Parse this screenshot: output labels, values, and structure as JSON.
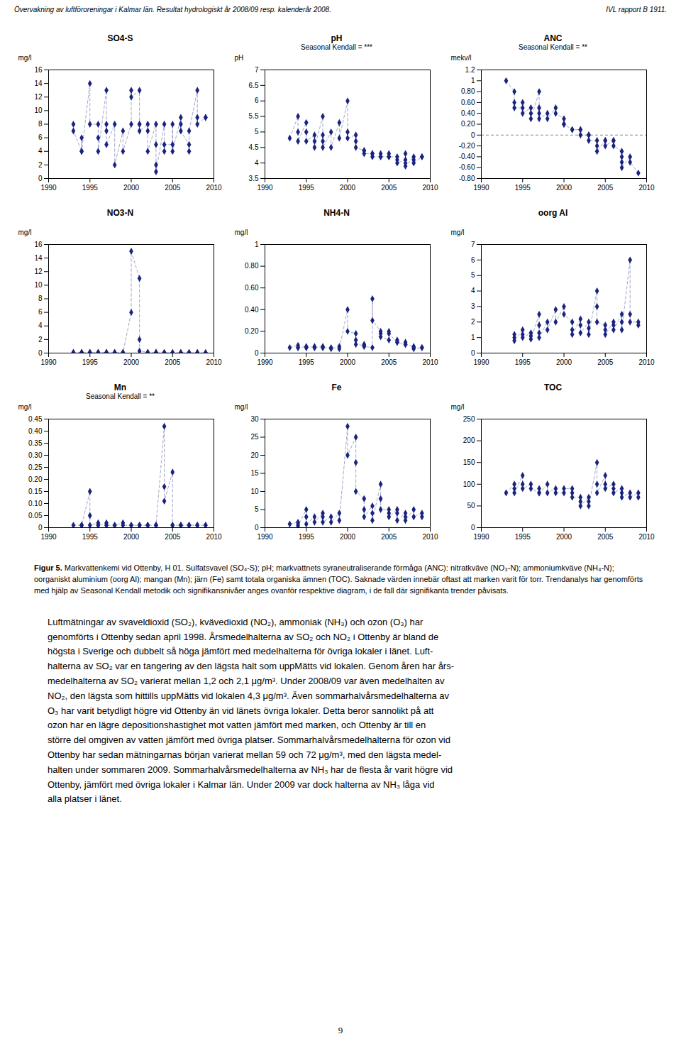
{
  "header_left": "Övervakning av luftföroreningar i Kalmar län. Resultat hydrologiskt år 2008/09 resp. kalenderår 2008.",
  "header_right": "IVL rapport B 1911.",
  "chart_data": [
    {
      "type": "line",
      "title": "SO4-S",
      "ylabel": "mg/l",
      "color": "#1a237e",
      "marker": "diamond",
      "line_style": "dashed",
      "xlim": [
        1990,
        2010
      ],
      "xticks": [
        1990,
        1995,
        2000,
        2005,
        2010
      ],
      "ylim": [
        0,
        16
      ],
      "yticks": [
        0,
        2,
        4,
        6,
        8,
        10,
        12,
        14,
        16
      ],
      "x": [
        1993,
        1993,
        1994,
        1994,
        1994,
        1995,
        1995,
        1996,
        1996,
        1996,
        1997,
        1997,
        1997,
        1997,
        1998,
        1998,
        1999,
        1999,
        2000,
        2000,
        2000,
        2001,
        2001,
        2001,
        2001,
        2002,
        2002,
        2002,
        2003,
        2003,
        2003,
        2003,
        2004,
        2004,
        2004,
        2005,
        2005,
        2005,
        2006,
        2006,
        2006,
        2007,
        2007,
        2007,
        2008,
        2008,
        2008,
        2009,
        2009
      ],
      "values": [
        8,
        7,
        4,
        6,
        4,
        14,
        8,
        8,
        6,
        4,
        13,
        8,
        7,
        5,
        8,
        2,
        7,
        4,
        8,
        13,
        12,
        13,
        8,
        8,
        7,
        8,
        7,
        4,
        8,
        5,
        2,
        1,
        8,
        4,
        5,
        5,
        8,
        4,
        9,
        8,
        7,
        5,
        4,
        7,
        13,
        9,
        8,
        9,
        9
      ]
    },
    {
      "type": "line",
      "title": "pH",
      "subtitle": "Seasonal Kendall = ***",
      "ylabel": "pH",
      "color": "#1a237e",
      "marker": "diamond",
      "line_style": "dashed",
      "xlim": [
        1990,
        2010
      ],
      "xticks": [
        1990,
        1995,
        2000,
        2005,
        2010
      ],
      "ylim": [
        3.5,
        7.0
      ],
      "yticks": [
        3.5,
        4.0,
        4.5,
        5.0,
        5.5,
        6.0,
        6.5,
        7.0
      ],
      "x": [
        1993,
        1994,
        1994,
        1994,
        1995,
        1995,
        1995,
        1996,
        1996,
        1996,
        1997,
        1997,
        1997,
        1997,
        1998,
        1998,
        1999,
        1999,
        2000,
        2000,
        2000,
        2001,
        2001,
        2001,
        2002,
        2002,
        2002,
        2003,
        2003,
        2003,
        2004,
        2004,
        2004,
        2005,
        2005,
        2005,
        2006,
        2006,
        2006,
        2007,
        2007,
        2007,
        2007,
        2008,
        2008,
        2008,
        2009,
        2009
      ],
      "values": [
        4.8,
        5.5,
        5.0,
        4.7,
        5.3,
        5.0,
        4.7,
        4.9,
        4.7,
        4.5,
        5.5,
        4.9,
        4.7,
        4.5,
        5.0,
        4.5,
        5.3,
        4.8,
        6.0,
        5.0,
        4.8,
        4.9,
        4.7,
        4.5,
        4.4,
        4.4,
        4.3,
        4.3,
        4.3,
        4.2,
        4.2,
        4.3,
        4.2,
        4.2,
        4.3,
        4.2,
        4.2,
        4.1,
        4.0,
        4.1,
        4.3,
        4.0,
        3.9,
        4.2,
        4.1,
        4.0,
        4.2,
        4.2
      ]
    },
    {
      "type": "line",
      "title": "ANC",
      "subtitle": "Seasonal Kendall = **",
      "ylabel": "mekv/l",
      "color": "#1a237e",
      "marker": "diamond",
      "line_style": "dashed",
      "xlim": [
        1990,
        2010
      ],
      "xticks": [
        1990,
        1995,
        2000,
        2005,
        2010
      ],
      "ylim": [
        -0.8,
        1.2
      ],
      "yticks": [
        {
          "value": -0.8,
          "label": "-0.80"
        },
        {
          "value": -0.6,
          "label": "-0.60"
        },
        {
          "value": -0.4,
          "label": "-0.40"
        },
        {
          "value": -0.2,
          "label": "-0.20"
        },
        0.0,
        {
          "value": 0.2,
          "label": "0.20"
        },
        {
          "value": 0.4,
          "label": "0.40"
        },
        {
          "value": 0.6,
          "label": "0.60"
        },
        {
          "value": 0.8,
          "label": "0.80"
        },
        1.0,
        1.2
      ],
      "reference_line": 0.0,
      "x": [
        1993,
        1994,
        1994,
        1994,
        1995,
        1995,
        1995,
        1996,
        1996,
        1996,
        1997,
        1997,
        1997,
        1997,
        1998,
        1998,
        1999,
        1999,
        2000,
        2000,
        2000,
        2001,
        2001,
        2002,
        2002,
        2002,
        2003,
        2003,
        2003,
        2004,
        2004,
        2004,
        2005,
        2005,
        2005,
        2006,
        2006,
        2006,
        2007,
        2007,
        2007,
        2007,
        2008,
        2008,
        2009
      ],
      "values": [
        1.0,
        0.8,
        0.6,
        0.5,
        0.5,
        0.6,
        0.4,
        0.5,
        0.4,
        0.3,
        0.8,
        0.5,
        0.4,
        0.3,
        0.4,
        0.3,
        0.5,
        0.4,
        0.3,
        0.2,
        0.2,
        0.1,
        0.1,
        0.1,
        0.1,
        0.0,
        0.0,
        0.0,
        -0.1,
        -0.1,
        -0.2,
        -0.3,
        -0.1,
        -0.1,
        -0.2,
        -0.1,
        -0.1,
        -0.2,
        -0.3,
        -0.4,
        -0.5,
        -0.6,
        -0.4,
        -0.5,
        -0.7
      ]
    },
    {
      "type": "line",
      "title": "NO3-N",
      "ylabel": "mg/l",
      "color": "#1a237e",
      "marker": "diamond",
      "line_style": "dashed",
      "xlim": [
        1990,
        2010
      ],
      "xticks": [
        1990,
        1995,
        2000,
        2005,
        2010
      ],
      "ylim": [
        0,
        16
      ],
      "yticks": [
        0,
        2,
        4,
        6,
        8,
        10,
        12,
        14,
        16
      ],
      "x": [
        1993,
        1993,
        1994,
        1994,
        1994,
        1995,
        1995,
        1995,
        1996,
        1996,
        1996,
        1997,
        1997,
        1997,
        1998,
        1998,
        1999,
        1999,
        2000,
        2000,
        2001,
        2001,
        2001,
        2002,
        2002,
        2002,
        2003,
        2003,
        2003,
        2004,
        2004,
        2004,
        2005,
        2005,
        2005,
        2006,
        2006,
        2006,
        2007,
        2007,
        2007,
        2008,
        2008,
        2008,
        2009,
        2009
      ],
      "values": [
        0.1,
        0.05,
        0.1,
        0.05,
        0.05,
        0.1,
        0.05,
        0.05,
        0.1,
        0.05,
        0.05,
        0.1,
        0.05,
        0.05,
        0.1,
        0.05,
        0.1,
        0.05,
        6.0,
        15.0,
        11.0,
        2.0,
        0.3,
        0.1,
        0.05,
        0.05,
        0.1,
        0.05,
        0.05,
        0.05,
        0.05,
        0.05,
        0.05,
        0.05,
        0.05,
        0.05,
        0.05,
        0.05,
        0.05,
        0.05,
        0.05,
        0.05,
        0.05,
        0.05,
        0.05,
        0.05
      ]
    },
    {
      "type": "line",
      "title": "NH4-N",
      "ylabel": "mg/l",
      "color": "#1a237e",
      "marker": "diamond",
      "line_style": "dashed",
      "xlim": [
        1990,
        2010
      ],
      "xticks": [
        1990,
        1995,
        2000,
        2005,
        2010
      ],
      "ylim": [
        0.0,
        1.0
      ],
      "yticks": [
        0.0,
        {
          "value": 0.2,
          "label": "0.20"
        },
        {
          "value": 0.4,
          "label": "0.40"
        },
        {
          "value": 0.6,
          "label": "0.60"
        },
        {
          "value": 0.8,
          "label": "0.80"
        },
        1.0
      ],
      "x": [
        1993,
        1994,
        1994,
        1994,
        1995,
        1995,
        1995,
        1996,
        1996,
        1996,
        1997,
        1997,
        1997,
        1998,
        1998,
        1999,
        1999,
        2000,
        2000,
        2001,
        2001,
        2001,
        2002,
        2002,
        2002,
        2003,
        2003,
        2003,
        2004,
        2004,
        2004,
        2005,
        2005,
        2005,
        2006,
        2006,
        2006,
        2007,
        2007,
        2007,
        2008,
        2008,
        2008,
        2009,
        2009
      ],
      "values": [
        0.05,
        0.07,
        0.05,
        0.05,
        0.06,
        0.05,
        0.05,
        0.06,
        0.05,
        0.05,
        0.06,
        0.05,
        0.05,
        0.05,
        0.04,
        0.06,
        0.04,
        0.4,
        0.2,
        0.18,
        0.12,
        0.08,
        0.07,
        0.08,
        0.06,
        0.05,
        0.5,
        0.3,
        0.2,
        0.18,
        0.15,
        0.12,
        0.2,
        0.18,
        0.1,
        0.12,
        0.1,
        0.08,
        0.1,
        0.08,
        0.06,
        0.05,
        0.04,
        0.05,
        0.05
      ]
    },
    {
      "type": "line",
      "title": "oorg Al",
      "ylabel": "mg/l",
      "color": "#1a237e",
      "marker": "diamond",
      "line_style": "dashed",
      "xlim": [
        1990,
        2010
      ],
      "xticks": [
        1990,
        1995,
        2000,
        2005,
        2010
      ],
      "ylim": [
        0,
        7
      ],
      "yticks": [
        0,
        1,
        2,
        3,
        4,
        5,
        6,
        7
      ],
      "x": [
        1994,
        1994,
        1994,
        1995,
        1995,
        1995,
        1996,
        1996,
        1996,
        1997,
        1997,
        1997,
        1997,
        1998,
        1998,
        1999,
        1999,
        2000,
        2000,
        2001,
        2001,
        2001,
        2002,
        2002,
        2002,
        2003,
        2003,
        2003,
        2004,
        2004,
        2004,
        2005,
        2005,
        2005,
        2006,
        2006,
        2006,
        2007,
        2007,
        2007,
        2008,
        2008,
        2008,
        2009,
        2009
      ],
      "values": [
        1.0,
        1.2,
        0.8,
        1.5,
        1.2,
        1.0,
        1.3,
        1.1,
        0.9,
        2.5,
        1.8,
        1.3,
        1.0,
        2.0,
        1.5,
        2.8,
        2.0,
        3.0,
        2.5,
        2.0,
        1.5,
        1.2,
        2.2,
        1.8,
        1.3,
        2.0,
        1.6,
        1.2,
        4.0,
        3.0,
        2.0,
        1.8,
        1.5,
        1.2,
        2.0,
        1.8,
        1.5,
        2.5,
        2.0,
        1.5,
        6.0,
        2.5,
        2.0,
        2.0,
        1.8
      ]
    },
    {
      "type": "line",
      "title": "Mn",
      "subtitle": "Seasonal Kendall = **",
      "ylabel": "mg/l",
      "color": "#1a237e",
      "marker": "diamond",
      "line_style": "dashed",
      "xlim": [
        1990,
        2010
      ],
      "xticks": [
        1990,
        1995,
        2000,
        2005,
        2010
      ],
      "ylim": [
        0.0,
        0.45
      ],
      "yticks": [
        0.0,
        0.05,
        {
          "value": 0.1,
          "label": "0.10"
        },
        0.15,
        {
          "value": 0.2,
          "label": "0.20"
        },
        0.25,
        {
          "value": 0.3,
          "label": "0.30"
        },
        0.35,
        {
          "value": 0.4,
          "label": "0.40"
        },
        0.45
      ],
      "x": [
        1993,
        1994,
        1994,
        1994,
        1995,
        1995,
        1995,
        1996,
        1996,
        1996,
        1997,
        1997,
        1997,
        1998,
        1998,
        1999,
        1999,
        2000,
        2000,
        2001,
        2001,
        2001,
        2002,
        2002,
        2002,
        2003,
        2003,
        2003,
        2004,
        2004,
        2004,
        2005,
        2005,
        2005,
        2006,
        2006,
        2006,
        2007,
        2007,
        2007,
        2008,
        2008,
        2008,
        2009,
        2009
      ],
      "values": [
        0.01,
        0.01,
        0.01,
        0.01,
        0.15,
        0.05,
        0.01,
        0.02,
        0.01,
        0.01,
        0.02,
        0.01,
        0.01,
        0.01,
        0.01,
        0.02,
        0.01,
        0.01,
        0.01,
        0.01,
        0.01,
        0.01,
        0.01,
        0.01,
        0.01,
        0.01,
        0.01,
        0.01,
        0.42,
        0.17,
        0.11,
        0.23,
        0.01,
        0.01,
        0.01,
        0.01,
        0.01,
        0.01,
        0.01,
        0.01,
        0.01,
        0.01,
        0.01,
        0.01,
        0.01
      ]
    },
    {
      "type": "line",
      "title": "Fe",
      "ylabel": "mg/l",
      "color": "#1a237e",
      "marker": "diamond",
      "line_style": "dashed",
      "xlim": [
        1990,
        2010
      ],
      "xticks": [
        1990,
        1995,
        2000,
        2005,
        2010
      ],
      "ylim": [
        0,
        30
      ],
      "yticks": [
        0,
        5,
        10,
        15,
        20,
        25,
        30
      ],
      "x": [
        1993,
        1994,
        1994,
        1994,
        1995,
        1995,
        1995,
        1996,
        1996,
        1997,
        1997,
        1997,
        1998,
        1998,
        1999,
        1999,
        2000,
        2000,
        2001,
        2001,
        2001,
        2002,
        2002,
        2002,
        2003,
        2003,
        2003,
        2004,
        2004,
        2004,
        2005,
        2005,
        2005,
        2006,
        2006,
        2006,
        2007,
        2007,
        2007,
        2008,
        2008,
        2009,
        2009
      ],
      "values": [
        1.0,
        1.5,
        1.0,
        0.5,
        5.0,
        3.0,
        1.0,
        3.0,
        1.5,
        4.0,
        3.0,
        1.5,
        3.0,
        1.5,
        4.0,
        2.0,
        28.0,
        20.0,
        25.0,
        18.0,
        10.0,
        8.0,
        5.0,
        3.0,
        6.0,
        4.0,
        2.0,
        12.0,
        8.0,
        5.0,
        5.0,
        4.0,
        3.0,
        5.0,
        4.0,
        2.0,
        4.0,
        3.0,
        2.0,
        5.0,
        3.0,
        4.0,
        3.0
      ]
    },
    {
      "type": "line",
      "title": "TOC",
      "ylabel": "mg/l",
      "color": "#1a237e",
      "marker": "diamond",
      "line_style": "dashed",
      "xlim": [
        1990,
        2010
      ],
      "xticks": [
        1990,
        1995,
        2000,
        2005,
        2010
      ],
      "ylim": [
        0,
        250
      ],
      "yticks": [
        0,
        50,
        100,
        150,
        200,
        250
      ],
      "x": [
        1993,
        1994,
        1994,
        1994,
        1995,
        1995,
        1995,
        1996,
        1996,
        1997,
        1997,
        1997,
        1998,
        1998,
        1999,
        1999,
        2000,
        2000,
        2001,
        2001,
        2001,
        2002,
        2002,
        2002,
        2003,
        2003,
        2003,
        2004,
        2004,
        2004,
        2005,
        2005,
        2005,
        2006,
        2006,
        2006,
        2007,
        2007,
        2007,
        2008,
        2008,
        2009,
        2009
      ],
      "values": [
        80,
        100,
        90,
        80,
        120,
        100,
        90,
        100,
        90,
        80,
        90,
        80,
        100,
        80,
        90,
        80,
        80,
        90,
        90,
        80,
        70,
        70,
        60,
        50,
        70,
        60,
        50,
        150,
        100,
        80,
        120,
        100,
        90,
        100,
        90,
        80,
        90,
        80,
        70,
        80,
        70,
        80,
        70
      ]
    }
  ],
  "caption_label": "Figur 5.",
  "caption": "Markvattenkemi vid Ottenby, H 01. Sulfatsvavel (SO₄-S); pH; markvattnets syraneutraliserande förmåga (ANC): nitratkväve (NO₃-N); ammoniumkväve (NH₄-N); oorganiskt aluminium (oorg Al); mangan (Mn); järn (Fe) samt totala organiska ämnen (TOC). Saknade värden innebär oftast att marken varit för torr. Trendanalys har genomförts med hjälp av Seasonal Kendall metodik och signifikansnivåer anges ovanför respektive diagram, i de fall där signifikanta trender påvisats.",
  "body_text_lines": [
    "Luftmätningar av svaveldioxid (SO₂), kvävedioxid (NO₂), ammoniak (NH₃) och ozon (O₃) har",
    "genomförts i Ottenby sedan april 1998. Årsmedelhalterna av SO₂ och NO₂ i Ottenby är bland de",
    "högsta i Sverige och dubbelt så höga jämfört med medelhalterna för övriga lokaler i länet. Luft-",
    "halterna av SO₂ var en tangering av den lägsta halt som uppMätts vid lokalen. Genom åren har års-",
    "medelhalterna av SO₂ varierat mellan 1,2 och 2,1 μg/m³. Under 2008/09 var även medelhalten av",
    "NO₂, den lägsta som hittills uppMätts vid lokalen 4,3 μg/m³. Även sommarhalvårsmedelhalterna av",
    "O₃ har varit betydligt högre vid Ottenby än vid länets övriga lokaler. Detta beror sannolikt på att",
    "ozon har en lägre depositionshastighet mot vatten jämfört med marken, och Ottenby är till en",
    "större del omgiven av vatten jämfört med övriga platser. Sommarhalvårsmedelhalterna för ozon vid",
    "Ottenby har sedan mätningarnas början varierat mellan 59 och 72 μg/m³, med den lägsta medel-",
    "halten under sommaren 2009. Sommarhalvårsmedelhalterna av NH₃ har de flesta år varit högre vid",
    "Ottenby, jämfört med övriga lokaler i Kalmar län. Under 2009 var dock halterna av NH₃ låga vid",
    "alla platser i länet."
  ],
  "page_number": "9"
}
